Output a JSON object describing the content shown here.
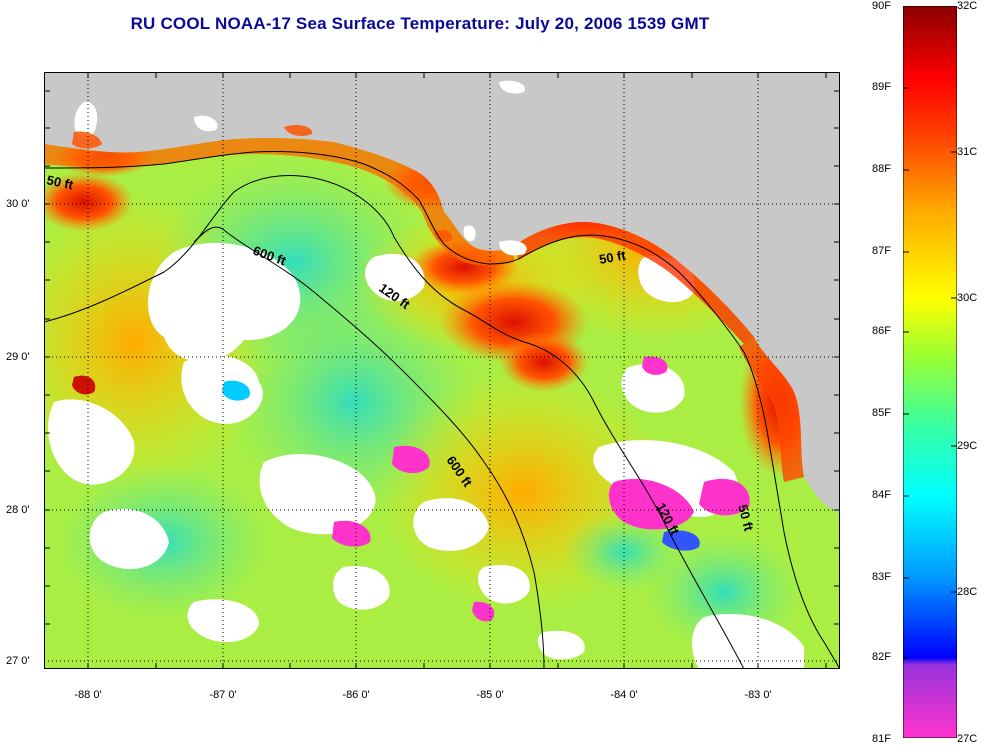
{
  "title": "RU COOL  NOAA-17  Sea Surface Temperature:  July 20, 2006 1539 GMT",
  "map": {
    "lat_labels": [
      "30 0'",
      "29 0'",
      "28 0'",
      "27 0'"
    ],
    "lon_labels": [
      "-88 0'",
      "-87 0'",
      "-86 0'",
      "-85 0'",
      "-84 0'",
      "-83 0'"
    ],
    "contour_labels": [
      "50 ft",
      "600 ft",
      "120 ft",
      "50 ft",
      "600 ft",
      "120 ft",
      "50 ft"
    ],
    "colors": {
      "land": "#c8c8c8",
      "cloud": "#ffffff",
      "gridline": "#000000"
    }
  },
  "colorbar": {
    "fahrenheit_labels": [
      "90F",
      "89F",
      "88F",
      "87F",
      "86F",
      "85F",
      "84F",
      "83F",
      "82F",
      "81F"
    ],
    "celsius_labels": [
      "32C",
      "31C",
      "30C",
      "29C",
      "28C",
      "27C"
    ],
    "stops": [
      "#ff33cc",
      "#9933dd",
      "#0000ff",
      "#0099ff",
      "#00ffff",
      "#33ffaa",
      "#99ff33",
      "#ffff00",
      "#ffaa00",
      "#ff4400",
      "#ff0000",
      "#8b0000"
    ]
  }
}
